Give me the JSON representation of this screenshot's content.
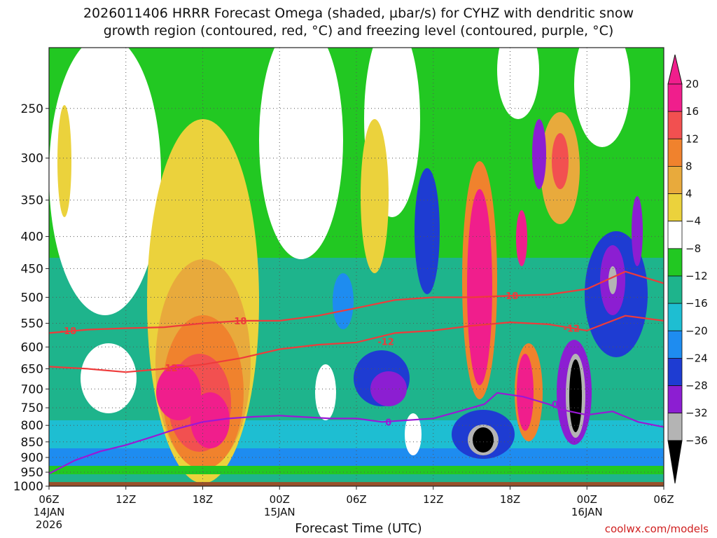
{
  "title_line1": "2026011406 HRRR Forecast Omega (shaded, µbar/s) for CYHZ with dendritic snow",
  "title_line2": "growth region (contoured, red, °C) and freezing level (contoured, purple, °C)",
  "chart_data": {
    "type": "time-height cross-section",
    "xlabel": "Forecast Time (UTC)",
    "x_ticks": [
      {
        "label": "06Z",
        "sub1": "14JAN",
        "sub2": "2026",
        "hour": 0
      },
      {
        "label": "12Z",
        "sub1": "",
        "sub2": "",
        "hour": 6
      },
      {
        "label": "18Z",
        "sub1": "",
        "sub2": "",
        "hour": 12
      },
      {
        "label": "00Z",
        "sub1": "15JAN",
        "sub2": "",
        "hour": 18
      },
      {
        "label": "06Z",
        "sub1": "",
        "sub2": "",
        "hour": 24
      },
      {
        "label": "12Z",
        "sub1": "",
        "sub2": "",
        "hour": 30
      },
      {
        "label": "18Z",
        "sub1": "",
        "sub2": "",
        "hour": 36
      },
      {
        "label": "00Z",
        "sub1": "16JAN",
        "sub2": "",
        "hour": 42
      },
      {
        "label": "06Z",
        "sub1": "",
        "sub2": "",
        "hour": 48
      }
    ],
    "xlim": [
      0,
      48
    ],
    "y_ticks": [
      250,
      300,
      350,
      400,
      450,
      500,
      550,
      600,
      650,
      700,
      750,
      800,
      850,
      900,
      950,
      1000
    ],
    "ylim_hpa": [
      200,
      1000
    ],
    "y_scale": "log-pressure (inverted)",
    "grid": true,
    "colorbar": {
      "labels": [
        "20",
        "16",
        "12",
        "8",
        "4",
        "−4",
        "−8",
        "−12",
        "−16",
        "−20",
        "−24",
        "−28",
        "−32",
        "−36"
      ],
      "colors": [
        "#f01e8c",
        "#f25050",
        "#f0822d",
        "#e8aa3c",
        "#ebd23c",
        "#ffffff",
        "#22c822",
        "#1eb48c",
        "#1ebed2",
        "#1e8cf0",
        "#1e3cd2",
        "#8c1ed2",
        "#b4b4b4",
        "#000000"
      ]
    },
    "contours": {
      "minus18": {
        "label": "-18",
        "color": "#ee3b3b",
        "points": [
          [
            0,
            570
          ],
          [
            3,
            563
          ],
          [
            6,
            560
          ],
          [
            9,
            558
          ],
          [
            12,
            550
          ],
          [
            15,
            545
          ],
          [
            18,
            545
          ],
          [
            21,
            535
          ],
          [
            24,
            520
          ],
          [
            27,
            505
          ],
          [
            30,
            500
          ],
          [
            33,
            500
          ],
          [
            36,
            497
          ],
          [
            39,
            495
          ],
          [
            42,
            485
          ],
          [
            45,
            455
          ],
          [
            48,
            475
          ]
        ]
      },
      "minus12": {
        "label": "-12",
        "color": "#ee3b3b",
        "points": [
          [
            0,
            645
          ],
          [
            3,
            650
          ],
          [
            6,
            658
          ],
          [
            9,
            650
          ],
          [
            12,
            640
          ],
          [
            15,
            625
          ],
          [
            18,
            605
          ],
          [
            21,
            595
          ],
          [
            24,
            590
          ],
          [
            27,
            570
          ],
          [
            30,
            565
          ],
          [
            33,
            555
          ],
          [
            36,
            548
          ],
          [
            39,
            552
          ],
          [
            42,
            565
          ],
          [
            45,
            535
          ],
          [
            48,
            545
          ]
        ]
      },
      "zero": {
        "label": "0",
        "color": "#9a18d6",
        "points": [
          [
            0,
            955
          ],
          [
            2,
            910
          ],
          [
            4,
            880
          ],
          [
            6,
            860
          ],
          [
            8,
            835
          ],
          [
            10,
            810
          ],
          [
            12,
            790
          ],
          [
            14,
            780
          ],
          [
            16,
            775
          ],
          [
            18,
            772
          ],
          [
            20,
            776
          ],
          [
            22,
            780
          ],
          [
            24,
            780
          ],
          [
            26,
            790
          ],
          [
            28,
            785
          ],
          [
            30,
            780
          ],
          [
            32,
            760
          ],
          [
            34,
            740
          ],
          [
            35,
            710
          ],
          [
            37,
            720
          ],
          [
            39,
            740
          ],
          [
            40,
            755
          ],
          [
            42,
            770
          ],
          [
            44,
            760
          ],
          [
            46,
            790
          ],
          [
            48,
            805
          ]
        ]
      }
    },
    "contour_labels": [
      {
        "text": "-18",
        "hour": 1.5,
        "hpa": 565
      },
      {
        "text": "-18",
        "hour": 14.8,
        "hpa": 545
      },
      {
        "text": "-18",
        "hour": 36,
        "hpa": 497
      },
      {
        "text": "-12",
        "hour": 9.4,
        "hpa": 648
      },
      {
        "text": "-12",
        "hour": 26.3,
        "hpa": 588
      },
      {
        "text": "-12",
        "hour": 40.8,
        "hpa": 560
      },
      {
        "text": "0",
        "hour": 26.5,
        "hpa": 790
      },
      {
        "text": "0",
        "hour": 39.5,
        "hpa": 740
      }
    ],
    "ground": {
      "color": "#98502a",
      "hpa": 985
    }
  },
  "credit": "coolwx.com/models"
}
